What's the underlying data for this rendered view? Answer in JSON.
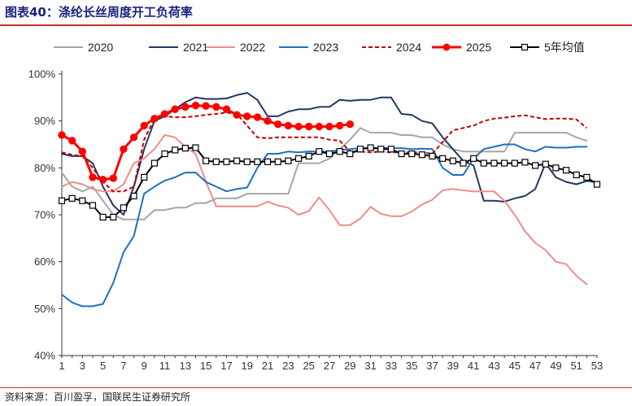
{
  "figure": {
    "title": "图表40：涤纶长丝周度开工负荷率",
    "source": "资料来源：百川盈孚，国联民生证券研究所"
  },
  "colors": {
    "title": "#1a237e",
    "rule": "#c0392b",
    "axis": "#333333"
  },
  "chart_data": {
    "type": "line",
    "title": "涤纶长丝周度开工负荷率",
    "xlabel": "",
    "ylabel": "",
    "xlim": [
      1,
      53
    ],
    "ylim": [
      40,
      100
    ],
    "x_ticks": [
      1,
      3,
      5,
      7,
      9,
      11,
      13,
      15,
      17,
      19,
      21,
      23,
      25,
      27,
      29,
      31,
      33,
      35,
      37,
      39,
      41,
      43,
      45,
      47,
      49,
      51,
      53
    ],
    "y_ticks": [
      40,
      50,
      60,
      70,
      80,
      90,
      100
    ],
    "y_tick_labels": [
      "40%",
      "50%",
      "60%",
      "70%",
      "80%",
      "90%",
      "100%"
    ],
    "grid": false,
    "legend_position": "top",
    "series": [
      {
        "name": "2020",
        "color": "#a6a6a6",
        "style": "solid",
        "marker": "none",
        "x": [
          1,
          2,
          3,
          4,
          5,
          6,
          7,
          8,
          9,
          10,
          11,
          12,
          13,
          14,
          15,
          16,
          17,
          18,
          19,
          20,
          21,
          22,
          23,
          24,
          25,
          26,
          27,
          28,
          29,
          30,
          31,
          32,
          33,
          34,
          35,
          36,
          37,
          38,
          39,
          40,
          41,
          42,
          43,
          44,
          45,
          46,
          47,
          48,
          49,
          50,
          51,
          52
        ],
        "values": [
          79,
          76,
          75,
          76,
          73,
          70,
          69,
          69,
          69,
          71,
          71,
          71.5,
          71.5,
          72.5,
          72.5,
          73.5,
          73.5,
          73.5,
          74.5,
          74.5,
          74.5,
          74.5,
          74.5,
          81,
          81,
          81,
          82,
          84,
          86,
          88.5,
          87.5,
          87.5,
          87.5,
          87,
          87,
          86.5,
          86.5,
          85,
          84,
          83.5,
          83.5,
          83.5,
          83.5,
          83.5,
          87.5,
          87.5,
          87.5,
          87.5,
          87.5,
          87.5,
          86.5,
          85.8
        ]
      },
      {
        "name": "2021",
        "color": "#203864",
        "style": "solid",
        "marker": "none",
        "x": [
          1,
          2,
          3,
          4,
          5,
          6,
          7,
          8,
          9,
          10,
          11,
          12,
          13,
          14,
          15,
          16,
          17,
          18,
          19,
          20,
          21,
          22,
          23,
          24,
          25,
          26,
          27,
          28,
          29,
          30,
          31,
          32,
          33,
          34,
          35,
          36,
          37,
          38,
          39,
          40,
          41,
          42,
          43,
          44,
          45,
          46,
          47,
          48,
          49,
          50,
          51,
          52,
          53
        ],
        "values": [
          83,
          82.5,
          82.5,
          81,
          76,
          72,
          70,
          76,
          84,
          90,
          91,
          92.5,
          94,
          95,
          94.7,
          94.7,
          94.8,
          95.5,
          96,
          94.5,
          91,
          91,
          92,
          92.5,
          92.5,
          93,
          93,
          94.5,
          94.3,
          94.5,
          94.5,
          95,
          95,
          91.5,
          91.3,
          90,
          89.5,
          86.5,
          84,
          81.5,
          80.5,
          73,
          73,
          72.8,
          73.5,
          74,
          75.5,
          81,
          78,
          77,
          76.5,
          77.2,
          77
        ]
      },
      {
        "name": "2022",
        "color": "#f08c8c",
        "style": "solid",
        "marker": "none",
        "x": [
          1,
          2,
          3,
          4,
          5,
          6,
          7,
          8,
          9,
          10,
          11,
          12,
          13,
          14,
          15,
          16,
          17,
          18,
          19,
          20,
          21,
          22,
          23,
          24,
          25,
          26,
          27,
          28,
          29,
          30,
          31,
          32,
          33,
          34,
          35,
          36,
          37,
          38,
          39,
          40,
          41,
          42,
          43,
          44,
          45,
          46,
          47,
          48,
          49,
          50,
          51,
          52
        ],
        "values": [
          76,
          77,
          76.5,
          75.5,
          75,
          75,
          76.5,
          81,
          82,
          84,
          87,
          86.5,
          84.5,
          83,
          77,
          71.8,
          71.8,
          71.8,
          71.8,
          71.8,
          72.8,
          72,
          71.5,
          70,
          70.8,
          73.7,
          71,
          67.8,
          67.8,
          69.2,
          71.7,
          70.2,
          69.7,
          69.7,
          70.7,
          72.2,
          73.2,
          75.2,
          75.5,
          75.2,
          75,
          75,
          75,
          73,
          70,
          66.5,
          64,
          62.5,
          60,
          59.5,
          57,
          55.2
        ]
      },
      {
        "name": "2023",
        "color": "#1f6fc5",
        "style": "solid",
        "marker": "none",
        "x": [
          1,
          2,
          3,
          4,
          5,
          6,
          7,
          8,
          9,
          10,
          11,
          12,
          13,
          14,
          15,
          16,
          17,
          18,
          19,
          20,
          21,
          22,
          23,
          24,
          25,
          26,
          27,
          28,
          29,
          30,
          31,
          32,
          33,
          34,
          35,
          36,
          37,
          38,
          39,
          40,
          41,
          42,
          43,
          44,
          45,
          46,
          47,
          48,
          49,
          50,
          51,
          52
        ],
        "values": [
          53,
          51.3,
          50.5,
          50.5,
          51,
          55.5,
          62,
          65.5,
          74.5,
          76,
          77.3,
          78,
          79,
          79,
          77,
          76,
          75,
          75.5,
          75.8,
          80,
          83,
          83,
          83.5,
          83.3,
          83.5,
          83.5,
          83.5,
          83.8,
          84,
          84.2,
          84.2,
          84.3,
          84.2,
          84.2,
          84,
          84.1,
          84,
          80,
          78.5,
          78.5,
          82,
          84,
          84.5,
          85,
          85,
          84,
          83.5,
          84.5,
          84.3,
          84.3,
          84.5,
          84.5
        ]
      },
      {
        "name": "2024",
        "color": "#c00000",
        "style": "dashed",
        "marker": "none",
        "x": [
          1,
          2,
          3,
          4,
          5,
          6,
          7,
          8,
          9,
          10,
          11,
          12,
          13,
          14,
          15,
          16,
          17,
          18,
          19,
          20,
          21,
          22,
          23,
          24,
          25,
          26,
          27,
          28,
          29,
          30,
          31,
          32,
          33,
          34,
          35,
          36,
          37,
          38,
          39,
          40,
          41,
          42,
          43,
          44,
          45,
          46,
          47,
          48,
          49,
          50,
          51,
          52
        ],
        "values": [
          83.3,
          82.8,
          82.5,
          80,
          77,
          75,
          75,
          76,
          86,
          90.5,
          91,
          90.8,
          90.8,
          91,
          91.3,
          91.5,
          91.8,
          91.5,
          89,
          86.5,
          86.3,
          86.5,
          86.5,
          86.5,
          86.5,
          86.5,
          86,
          85.8,
          83.5,
          83.5,
          83.3,
          83.5,
          83.3,
          83.3,
          83.3,
          83.3,
          83,
          85.5,
          88,
          88.5,
          89,
          90,
          90.5,
          90.7,
          91,
          91.2,
          90.8,
          90.4,
          90.5,
          90.5,
          90.3,
          88.5
        ]
      },
      {
        "name": "2025",
        "color": "#ff0000",
        "style": "solid-bold",
        "marker": "circle",
        "x": [
          1,
          2,
          3,
          4,
          5,
          6,
          7,
          8,
          9,
          10,
          11,
          12,
          13,
          14,
          15,
          16,
          17,
          18,
          19,
          20,
          21,
          22,
          23,
          24,
          25,
          26,
          27,
          28,
          29
        ],
        "values": [
          87,
          85.8,
          83.5,
          78,
          77.5,
          77.8,
          84,
          86.5,
          89,
          90.5,
          91.5,
          92.5,
          93,
          93.3,
          93.2,
          93,
          92.5,
          91.3,
          91,
          90.8,
          90,
          89.3,
          89,
          88.8,
          88.8,
          88.8,
          88.8,
          89,
          89.3
        ]
      },
      {
        "name": "5年均值",
        "color": "#000000",
        "style": "solid",
        "marker": "square",
        "x": [
          1,
          2,
          3,
          4,
          5,
          6,
          7,
          8,
          9,
          10,
          11,
          12,
          13,
          14,
          15,
          16,
          17,
          18,
          19,
          20,
          21,
          22,
          23,
          24,
          25,
          26,
          27,
          28,
          29,
          30,
          31,
          32,
          33,
          34,
          35,
          36,
          37,
          38,
          39,
          40,
          41,
          42,
          43,
          44,
          45,
          46,
          47,
          48,
          49,
          50,
          51,
          52,
          53
        ],
        "values": [
          73,
          73.5,
          73,
          72,
          69.5,
          69.5,
          71.5,
          74,
          78,
          81,
          83,
          83.8,
          84.2,
          84.3,
          81.5,
          81.3,
          81.3,
          81.5,
          81.3,
          81.3,
          81.3,
          81.3,
          81.5,
          82,
          82.5,
          83.5,
          83,
          83.5,
          83,
          84,
          84.3,
          84,
          84,
          83,
          83,
          82.8,
          82.5,
          82,
          81.5,
          81,
          82,
          81,
          81,
          81,
          81,
          81.2,
          80.5,
          80.8,
          80,
          79.5,
          78.5,
          78,
          76.5
        ]
      }
    ]
  }
}
